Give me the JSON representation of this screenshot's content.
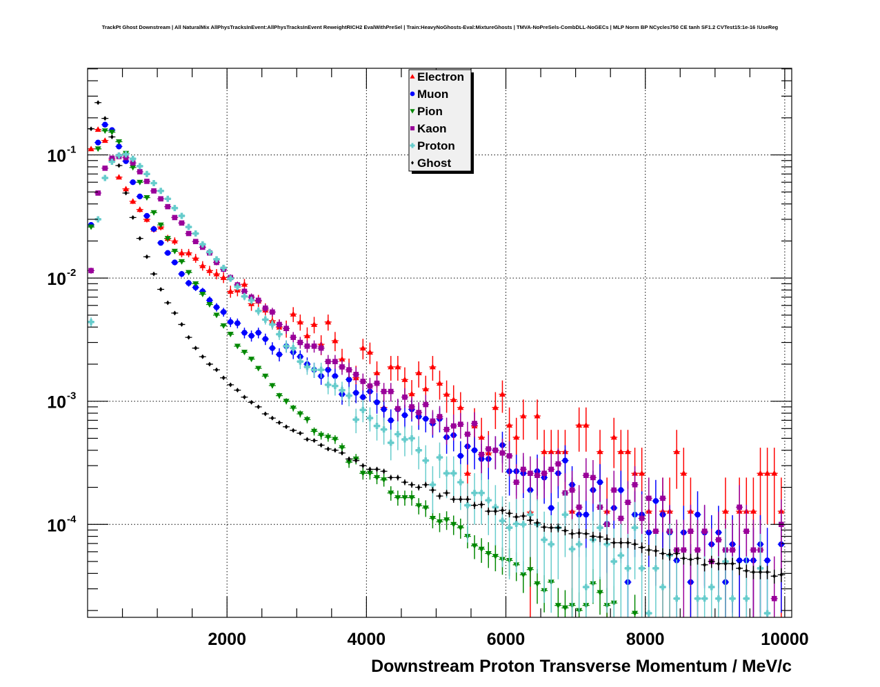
{
  "chart_data": {
    "type": "scatter",
    "title": "TrackPt Ghost Downstream | All NaturalMix AllPhysTracksInEvent:AllPhysTracksInEvent ReweightRICH2 EvalWithPreSel | Train:HeavyNoGhosts-Eval:MixtureGhosts | TMVA-NoPreSels-CombDLL-NoGECs | MLP Norm BP NCycles750 CE tanh SF1.2 CVTest15:1e-16 !UseReg",
    "xlabel": "Downstream Proton Transverse Momentum / MeV/c",
    "ylabel": "",
    "xlim": [
      0,
      10100
    ],
    "ylim": [
      1.76e-05,
      0.505
    ],
    "yscale": "log",
    "grid": true,
    "legend_position": "top-center",
    "x_ticks": [
      2000,
      4000,
      6000,
      8000,
      10000
    ],
    "x_tick_labels": [
      "2000",
      "4000",
      "6000",
      "8000",
      "10000"
    ],
    "y_ticks": [
      0.1,
      0.01,
      0.001,
      0.0001
    ],
    "y_tick_labels": [
      {
        "base": "10",
        "exp": "-1"
      },
      {
        "base": "10",
        "exp": "-2"
      },
      {
        "base": "10",
        "exp": "-3"
      },
      {
        "base": "10",
        "exp": "-4"
      }
    ],
    "bin_width": 100,
    "x_start": 50,
    "series": [
      {
        "name": "Electron",
        "color": "#ff0000",
        "marker": "triangle-up",
        "err_k": 0.0099,
        "values": [
          0.112,
          0.161,
          0.131,
          0.091,
          0.066,
          0.053,
          0.042,
          0.036,
          0.03,
          0.025,
          0.026,
          0.021,
          0.02,
          0.016,
          0.016,
          0.0145,
          0.0126,
          0.0115,
          0.0108,
          0.0101,
          0.0078,
          0.008,
          0.0089,
          0.0062,
          0.0065,
          0.0055,
          0.0045,
          0.004,
          0.0039,
          0.0051,
          0.0044,
          0.0034,
          0.0042,
          0.0029,
          0.0044,
          0.0031,
          0.0022,
          0.0018,
          0.00155,
          0.0027,
          0.0025,
          0.0017,
          0.00089,
          0.0019,
          0.0019,
          0.0015,
          0.00115,
          0.0017,
          0.00126,
          0.0019,
          0.0014,
          0.00114,
          0.00103,
          0.00089,
          0.00026,
          0.00063,
          0.00051,
          0.00038,
          0.00089,
          0.00114,
          0.00064,
          0.00051,
          0.00076,
          0.000126,
          0.00076,
          0.00039,
          0.00039,
          0.00039,
          0.00039,
          0.000128,
          0.00064,
          0.00064,
          null,
          0.00039,
          0.000128,
          0.00051,
          0.00039,
          0.00039,
          0.00026,
          0.00026,
          0.000128,
          null,
          0.000128,
          0.000128,
          0.00039,
          0.00026,
          0.000128,
          null,
          null,
          null,
          null,
          0.000128,
          null,
          0.000128,
          0.000128,
          0.000128,
          0.00026,
          0.00026,
          0.00026,
          0.000128
        ]
      },
      {
        "name": "Muon",
        "color": "#0000ff",
        "marker": "circle",
        "err_k": 0.006,
        "values": [
          0.027,
          0.126,
          0.176,
          0.159,
          0.117,
          0.089,
          0.06,
          0.046,
          0.032,
          0.025,
          0.0193,
          0.016,
          0.0134,
          0.0108,
          0.0091,
          0.0084,
          0.0078,
          0.0066,
          0.0058,
          0.0053,
          0.0044,
          0.0043,
          0.0036,
          0.0034,
          0.0036,
          0.0032,
          0.0027,
          0.0024,
          0.0028,
          0.0025,
          0.0023,
          0.002,
          0.0018,
          0.0016,
          0.0018,
          0.0016,
          0.00114,
          0.0015,
          0.00117,
          0.00108,
          0.0012,
          0.00098,
          0.00086,
          0.0007,
          0.00086,
          0.00077,
          0.00086,
          0.00075,
          0.00072,
          0.00066,
          0.00072,
          0.00051,
          0.00053,
          0.00036,
          0.00043,
          0.0004,
          0.00034,
          0.00034,
          0.0004,
          0.00044,
          0.00027,
          0.00027,
          0.00026,
          0.00019,
          0.00027,
          0.00024,
          0.000136,
          0.00026,
          0.00033,
          0.00021,
          0.00012,
          0.00012,
          0.00019,
          0.00022,
          0.000101,
          0.000136,
          0.00019,
          3.4e-05,
          0.00012,
          0.00012,
          8.6e-05,
          0.000155,
          0.00012,
          8.6e-05,
          5.1e-05,
          8.6e-05,
          3.4e-05,
          0.00012,
          8.6e-05,
          6.9e-05,
          8.6e-05,
          3.4e-05,
          6.9e-05,
          5.1e-05,
          5.1e-05,
          5.1e-05,
          6.9e-05,
          5.1e-05,
          null,
          6.9e-05
        ]
      },
      {
        "name": "Pion",
        "color": "#008800",
        "marker": "triangle-down",
        "err_k": 0.0018,
        "values": [
          0.026,
          0.112,
          0.157,
          0.153,
          0.128,
          0.103,
          0.079,
          0.06,
          0.045,
          0.034,
          0.027,
          0.021,
          0.0165,
          0.0136,
          0.0111,
          0.009,
          0.0074,
          0.0061,
          0.005,
          0.0041,
          0.0035,
          0.0028,
          0.0025,
          0.0022,
          0.00185,
          0.0016,
          0.00134,
          0.00111,
          0.001,
          0.00088,
          0.00079,
          0.00071,
          0.00057,
          0.00053,
          0.00051,
          0.00049,
          0.00042,
          0.00032,
          0.00034,
          0.00026,
          0.00026,
          0.00024,
          0.00023,
          0.00018,
          0.000165,
          0.000165,
          0.000165,
          0.000142,
          0.000136,
          0.000112,
          0.000105,
          0.000109,
          0.0001,
          9.4e-05,
          8e-05,
          6.7e-05,
          6.3e-05,
          5.8e-05,
          5.5e-05,
          5.2e-05,
          5.1e-05,
          4.7e-05,
          3.9e-05,
          4.3e-05,
          3.3e-05,
          2.9e-05,
          3.4e-05,
          2.2e-05,
          2.1e-05,
          2.2e-05,
          2e-05,
          2.2e-05,
          3.3e-05,
          2.8e-05,
          2.2e-05,
          2.3e-05,
          null,
          null,
          1.9e-05,
          null,
          null,
          null,
          null,
          null,
          null,
          null,
          null,
          null,
          null,
          null,
          null,
          null,
          null,
          null,
          null,
          null,
          null,
          null,
          null,
          null
        ]
      },
      {
        "name": "Kaon",
        "color": "#990099",
        "marker": "square",
        "err_k": 0.006,
        "values": [
          0.0115,
          0.049,
          0.078,
          0.094,
          0.097,
          0.095,
          0.086,
          0.073,
          0.061,
          0.051,
          0.044,
          0.038,
          0.031,
          0.028,
          0.023,
          0.0198,
          0.0178,
          0.016,
          0.0134,
          0.0118,
          0.0101,
          0.0088,
          0.0078,
          0.007,
          0.0066,
          0.0057,
          0.0053,
          0.0042,
          0.0039,
          0.0033,
          0.003,
          0.0028,
          0.0028,
          0.0027,
          0.0021,
          0.0021,
          0.0019,
          0.0018,
          0.00165,
          0.00145,
          0.00133,
          0.0014,
          0.0012,
          0.0012,
          0.00087,
          0.00108,
          0.0009,
          0.00081,
          0.00094,
          0.00069,
          0.00075,
          0.00059,
          0.00063,
          0.00065,
          0.00054,
          0.00066,
          0.00037,
          0.00041,
          0.0004,
          0.00038,
          0.00036,
          0.00022,
          0.00028,
          0.00026,
          0.00025,
          0.00026,
          0.00028,
          0.00031,
          0.00018,
          0.00019,
          0.000138,
          0.00025,
          0.00024,
          0.000138,
          0.0001,
          0.00019,
          0.000112,
          0.000151,
          0.00021,
          0.000112,
          0.000163,
          8.8e-05,
          0.000163,
          8.8e-05,
          6.2e-05,
          6.2e-05,
          8.8e-05,
          6.2e-05,
          8.8e-05,
          5e-05,
          7.5e-05,
          6.2e-05,
          6.2e-05,
          0.000138,
          8.8e-05,
          6.2e-05,
          6.2e-05,
          null,
          2.5e-05,
          0.0001
        ]
      },
      {
        "name": "Proton",
        "color": "#66cccc",
        "marker": "cross",
        "err_k": 0.006,
        "values": [
          0.0044,
          0.03,
          0.065,
          0.088,
          0.099,
          0.101,
          0.093,
          0.081,
          0.07,
          0.059,
          0.051,
          0.044,
          0.037,
          0.032,
          0.026,
          0.023,
          0.0188,
          0.0163,
          0.0142,
          0.0121,
          0.0099,
          0.0085,
          0.0071,
          0.0066,
          0.0054,
          0.0046,
          0.0042,
          0.0035,
          0.0028,
          0.0027,
          0.0021,
          0.0019,
          0.0018,
          0.0018,
          0.00136,
          0.00133,
          0.00123,
          0.00111,
          0.00071,
          0.00085,
          0.00073,
          0.00063,
          0.00059,
          0.00046,
          0.00054,
          0.00049,
          0.0005,
          0.0004,
          0.00033,
          0.00021,
          0.00035,
          0.00026,
          0.00026,
          0.00022,
          0.000143,
          0.00018,
          0.00018,
          0.000157,
          0.000138,
          0.000107,
          9.4e-05,
          0.000101,
          0.0001,
          0.00012,
          0.0001,
          7.5e-05,
          6.9e-05,
          9.4e-05,
          0.00012,
          6.3e-05,
          6.9e-05,
          3.1e-05,
          7.5e-05,
          9.4e-05,
          6.9e-05,
          5e-05,
          5.6e-05,
          4.4e-05,
          9.4e-05,
          4.4e-05,
          1.9e-05,
          4.4e-05,
          3.1e-05,
          5.6e-05,
          2.5e-05,
          null,
          null,
          2.5e-05,
          2.5e-05,
          3.1e-05,
          2.5e-05,
          5e-05,
          2.5e-05,
          null,
          2.5e-05,
          null,
          4.4e-05,
          1.9e-05,
          null,
          null
        ]
      },
      {
        "name": "Ghost",
        "color": "#000000",
        "marker": "diamond",
        "err_k": 0.0008,
        "values": [
          0.163,
          0.266,
          0.198,
          0.14,
          0.082,
          0.049,
          0.031,
          0.021,
          0.0149,
          0.0108,
          0.0081,
          0.0063,
          0.0052,
          0.0042,
          0.0033,
          0.0027,
          0.0023,
          0.002,
          0.0018,
          0.00155,
          0.00136,
          0.00123,
          0.00108,
          0.00098,
          0.0009,
          0.00079,
          0.00073,
          0.00067,
          0.00062,
          0.00058,
          0.00055,
          0.00049,
          0.00048,
          0.00044,
          0.00041,
          0.0004,
          0.00038,
          0.00034,
          0.00033,
          0.0003,
          0.00028,
          0.00028,
          0.00027,
          0.00024,
          0.00024,
          0.00022,
          0.00021,
          0.0002,
          0.00021,
          0.00019,
          0.00017,
          0.00018,
          0.00016,
          0.00016,
          0.00016,
          0.000143,
          0.000145,
          0.000128,
          0.000128,
          0.00013,
          0.000123,
          0.000115,
          0.000117,
          0.000108,
          0.000103,
          9.5e-05,
          9.4e-05,
          9.4e-05,
          8.9e-05,
          8.4e-05,
          8.5e-05,
          8.4e-05,
          8e-05,
          7.9e-05,
          7.6e-05,
          7.1e-05,
          7.1e-05,
          7.1e-05,
          6.9e-05,
          6.5e-05,
          6.2e-05,
          6.1e-05,
          5.8e-05,
          5.7e-05,
          5.8e-05,
          5.3e-05,
          5.2e-05,
          5.3e-05,
          4.7e-05,
          5e-05,
          4.8e-05,
          4.8e-05,
          4.8e-05,
          4.4e-05,
          4.2e-05,
          4.1e-05,
          4.1e-05,
          4.1e-05,
          3.8e-05,
          3.9e-05
        ]
      }
    ]
  }
}
